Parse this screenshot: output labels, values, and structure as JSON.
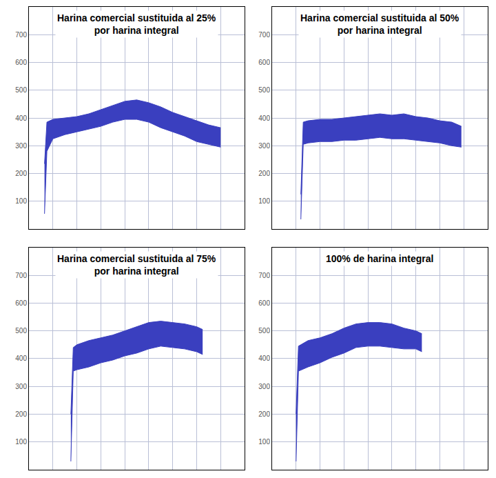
{
  "chart_data": [
    {
      "type": "area",
      "title": "Harina comercial sustituida al 25% por harina integral",
      "x": [
        1.3,
        1.5,
        2,
        3,
        4,
        5,
        6,
        7,
        8,
        9,
        10,
        11,
        12,
        13,
        14,
        15,
        16
      ],
      "series": [
        {
          "values": [
            55,
            280,
            325,
            340,
            350,
            360,
            370,
            385,
            395,
            395,
            385,
            365,
            350,
            335,
            315,
            305,
            295
          ]
        },
        {
          "values": [
            235,
            385,
            395,
            400,
            405,
            415,
            430,
            445,
            460,
            465,
            455,
            440,
            420,
            405,
            390,
            375,
            365
          ]
        }
      ],
      "color": "#3a3fbf",
      "xlim": [
        0,
        18
      ],
      "xticks": [
        0,
        2,
        4,
        6,
        8,
        10,
        12,
        14,
        16,
        18
      ],
      "ylim": [
        0,
        800
      ],
      "yticks": [
        100,
        200,
        300,
        400,
        500,
        600,
        700
      ],
      "grid": true,
      "tick_labels": "y"
    },
    {
      "type": "area",
      "title": "Harina comercial sustituida al 50% por harina integral",
      "x": [
        2.4,
        2.6,
        3,
        4,
        5,
        6,
        7,
        8,
        9,
        10,
        11,
        12,
        13,
        14,
        15,
        15.8
      ],
      "series": [
        {
          "values": [
            35,
            305,
            310,
            315,
            315,
            320,
            320,
            325,
            330,
            325,
            325,
            320,
            315,
            310,
            300,
            295
          ]
        },
        {
          "values": [
            125,
            385,
            390,
            395,
            395,
            400,
            405,
            410,
            415,
            410,
            415,
            405,
            400,
            390,
            385,
            370
          ]
        }
      ],
      "color": "#3a3fbf",
      "xlim": [
        0,
        18
      ],
      "xticks": [
        0,
        2,
        4,
        6,
        8,
        10,
        12,
        14,
        16,
        18
      ],
      "ylim": [
        0,
        800
      ],
      "yticks": [
        100,
        200,
        300,
        400,
        500,
        600,
        700
      ],
      "grid": true,
      "tick_labels": "y"
    },
    {
      "type": "area",
      "title": "Harina comercial sustituida al 75% por harina integral",
      "x": [
        3.5,
        3.7,
        4,
        5,
        6,
        7,
        8,
        9,
        10,
        11,
        12,
        13,
        14,
        14.5
      ],
      "series": [
        {
          "values": [
            30,
            355,
            360,
            370,
            385,
            395,
            410,
            420,
            435,
            445,
            440,
            435,
            425,
            415
          ]
        },
        {
          "values": [
            200,
            440,
            450,
            465,
            475,
            485,
            500,
            515,
            530,
            535,
            530,
            525,
            515,
            505
          ]
        }
      ],
      "color": "#3a3fbf",
      "xlim": [
        0,
        18
      ],
      "xticks": [
        0,
        2,
        4,
        6,
        8,
        10,
        12,
        14,
        16,
        18
      ],
      "ylim": [
        0,
        800
      ],
      "yticks": [
        100,
        200,
        300,
        400,
        500,
        600,
        700
      ],
      "grid": true,
      "tick_labels": "y"
    },
    {
      "type": "area",
      "title": "100% de harina integral",
      "x": [
        2,
        2.2,
        3,
        4,
        5,
        6,
        7,
        8,
        9,
        10,
        11,
        12,
        12.5
      ],
      "series": [
        {
          "values": [
            30,
            355,
            370,
            385,
            405,
            420,
            440,
            445,
            445,
            440,
            435,
            435,
            425
          ]
        },
        {
          "values": [
            200,
            445,
            465,
            475,
            490,
            510,
            525,
            530,
            530,
            525,
            510,
            500,
            490
          ]
        }
      ],
      "color": "#3a3fbf",
      "xlim": [
        0,
        18
      ],
      "xticks": [
        0,
        2,
        4,
        6,
        8,
        10,
        12,
        14,
        16,
        18
      ],
      "ylim": [
        0,
        800
      ],
      "yticks": [
        100,
        200,
        300,
        400,
        500,
        600,
        700
      ],
      "grid": true,
      "tick_labels": "y"
    }
  ]
}
